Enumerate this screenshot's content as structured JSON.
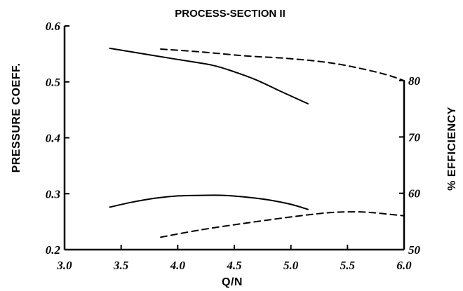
{
  "chart_data": {
    "type": "line",
    "title": "PROCESS-SECTION II",
    "xlabel": "Q/N",
    "ylabel_left": "PRESSURE COEFF.",
    "ylabel_right": "% EFFICIENCY",
    "xlim": [
      3.0,
      6.0
    ],
    "ylim_left": [
      0.2,
      0.6
    ],
    "ylim_right": [
      50,
      85
    ],
    "x_ticks": [
      3.0,
      3.5,
      4.0,
      4.5,
      5.0,
      5.5,
      6.0
    ],
    "x_tick_labels": [
      "3.0",
      "3.5",
      "4.0",
      "4.5",
      "5.0",
      "5.5",
      "6.0"
    ],
    "y_left_ticks": [
      0.2,
      0.3,
      0.4,
      0.5,
      0.6
    ],
    "y_left_tick_labels": [
      "0.2",
      "0.3",
      "0.4",
      "0.5",
      "0.6"
    ],
    "y_right_ticks": [
      50,
      60,
      70,
      80
    ],
    "y_right_tick_labels": [
      "50",
      "60",
      "70",
      "80"
    ],
    "grid": false,
    "series": [
      {
        "axis": "left",
        "style": "solid",
        "x": [
          3.4,
          3.7,
          4.0,
          4.3,
          4.5,
          4.7,
          4.9,
          5.15
        ],
        "y": [
          0.56,
          0.55,
          0.54,
          0.53,
          0.518,
          0.503,
          0.484,
          0.461
        ]
      },
      {
        "axis": "left",
        "style": "solid",
        "x": [
          3.4,
          3.6,
          3.8,
          4.0,
          4.2,
          4.4,
          4.6,
          4.8,
          5.0,
          5.15
        ],
        "y": [
          0.276,
          0.285,
          0.292,
          0.296,
          0.297,
          0.297,
          0.294,
          0.289,
          0.281,
          0.272
        ]
      },
      {
        "axis": "right",
        "style": "dashed",
        "x": [
          3.85,
          4.2,
          4.6,
          5.0,
          5.4,
          5.8,
          6.0
        ],
        "y": [
          85.6,
          85.1,
          84.4,
          83.9,
          83.0,
          81.3,
          80.0
        ]
      },
      {
        "axis": "right",
        "style": "dashed",
        "x": [
          3.85,
          4.2,
          4.6,
          5.0,
          5.3,
          5.5,
          5.7,
          6.0
        ],
        "y": [
          52.2,
          53.5,
          54.7,
          55.8,
          56.5,
          56.7,
          56.6,
          56.0
        ]
      }
    ]
  }
}
